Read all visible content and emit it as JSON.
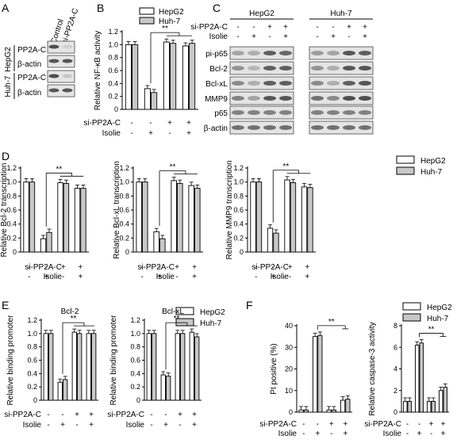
{
  "panel_letters": [
    "A",
    "B",
    "C",
    "D",
    "E",
    "F"
  ],
  "colors": {
    "hepg2": "#ffffff",
    "huh7": "#c8c8c8",
    "axis": "#000000"
  },
  "row_labels": {
    "si": "si-PP2A-C",
    "isolie": "Isolie"
  },
  "legend": {
    "hepg2": "HepG2",
    "huh7": "Huh-7"
  },
  "significance": "**",
  "blot_a": {
    "columns": [
      "Control",
      "si-PP2A-C"
    ],
    "groups": [
      "HepG2",
      "Huh-7"
    ],
    "rows": [
      "PP2A-C",
      "β-actin",
      "PP2A-C",
      "β-actin"
    ]
  },
  "blot_c": {
    "groups": [
      "HepG2",
      "Huh-7"
    ],
    "si_marks": [
      "-",
      "-",
      "+",
      "+",
      "-",
      "-",
      "+",
      "+"
    ],
    "isolie_marks": [
      "-",
      "+",
      "-",
      "+",
      "-",
      "+",
      "-",
      "+"
    ],
    "rows": [
      "pi-p65",
      "Bcl-2",
      "Bcl-xL",
      "MMP9",
      "p65",
      "β-actin"
    ]
  },
  "chart_data": [
    {
      "id": "B",
      "type": "bar",
      "title": "",
      "ylabel": "Relative NF-κB activity",
      "ylim": [
        0,
        1.2
      ],
      "yticks": [
        "0",
        "0.2",
        "0.4",
        "0.6",
        "0.8",
        "1.0",
        "1.2"
      ],
      "si": [
        "-",
        "-",
        "+",
        "+"
      ],
      "isolie": [
        "-",
        "+",
        "-",
        "+"
      ],
      "series": [
        {
          "name": "HepG2",
          "values": [
            1.0,
            0.32,
            1.04,
            0.98
          ]
        },
        {
          "name": "Huh-7",
          "values": [
            1.0,
            0.26,
            1.02,
            1.02
          ]
        }
      ]
    },
    {
      "id": "D1",
      "type": "bar",
      "title": "",
      "ylabel": "Relative Bcl-2 transcription",
      "ylim": [
        0,
        1.2
      ],
      "yticks": [
        "0",
        "0.2",
        "0.4",
        "0.6",
        "0.8",
        "1.0",
        "1.2"
      ],
      "si": [
        "-",
        "-",
        "+",
        "+"
      ],
      "isolie": [
        "-",
        "+",
        "-",
        "+"
      ],
      "series": [
        {
          "name": "HepG2",
          "values": [
            1.0,
            0.19,
            0.99,
            0.91
          ]
        },
        {
          "name": "Huh-7",
          "values": [
            1.0,
            0.28,
            0.98,
            0.91
          ]
        }
      ]
    },
    {
      "id": "D2",
      "type": "bar",
      "title": "",
      "ylabel": "Relative Bcl-xL transcription",
      "ylim": [
        0,
        1.2
      ],
      "yticks": [
        "0",
        "0.2",
        "0.4",
        "0.6",
        "0.8",
        "1.0",
        "1.2"
      ],
      "si": [
        "-",
        "-",
        "+",
        "+"
      ],
      "isolie": [
        "-",
        "+",
        "-",
        "+"
      ],
      "series": [
        {
          "name": "HepG2",
          "values": [
            1.0,
            0.29,
            1.02,
            0.95
          ]
        },
        {
          "name": "Huh-7",
          "values": [
            1.0,
            0.19,
            0.98,
            0.91
          ]
        }
      ]
    },
    {
      "id": "D3",
      "type": "bar",
      "title": "",
      "ylabel": "Relative MMP9 transcription",
      "ylim": [
        0,
        1.2
      ],
      "yticks": [
        "0",
        "0.2",
        "0.4",
        "0.6",
        "0.8",
        "1.0",
        "1.2"
      ],
      "si": [
        "-",
        "-",
        "+",
        "+"
      ],
      "isolie": [
        "-",
        "+",
        "-",
        "+"
      ],
      "series": [
        {
          "name": "HepG2",
          "values": [
            1.0,
            0.34,
            1.03,
            0.93
          ]
        },
        {
          "name": "Huh-7",
          "values": [
            1.0,
            0.27,
            0.99,
            0.92
          ]
        }
      ]
    },
    {
      "id": "E1",
      "type": "bar",
      "title": "Bcl-2",
      "ylabel": "Relative binding promoter",
      "ylim": [
        0,
        1.2
      ],
      "yticks": [
        "0",
        "0.2",
        "0.4",
        "0.6",
        "0.8",
        "1.0",
        "1.2"
      ],
      "si": [
        "-",
        "-",
        "+",
        "+"
      ],
      "isolie": [
        "-",
        "+",
        "-",
        "+"
      ],
      "series": [
        {
          "name": "HepG2",
          "values": [
            1.0,
            0.27,
            1.02,
            1.0
          ]
        },
        {
          "name": "Huh-7",
          "values": [
            1.0,
            0.31,
            1.0,
            1.0
          ]
        }
      ]
    },
    {
      "id": "E2",
      "type": "bar",
      "title": "Bcl-xL",
      "ylabel": "Relative binding promoter",
      "ylim": [
        0,
        1.2
      ],
      "yticks": [
        "0",
        "0.2",
        "0.4",
        "0.6",
        "0.8",
        "1.0",
        "1.2"
      ],
      "si": [
        "-",
        "-",
        "+",
        "+"
      ],
      "isolie": [
        "-",
        "+",
        "-",
        "+"
      ],
      "series": [
        {
          "name": "HepG2",
          "values": [
            1.0,
            0.38,
            1.0,
            1.02
          ]
        },
        {
          "name": "Huh-7",
          "values": [
            1.0,
            0.36,
            1.0,
            0.95
          ]
        }
      ]
    },
    {
      "id": "F1",
      "type": "bar",
      "title": "",
      "ylabel": "PI positive (%)",
      "ylim": [
        0,
        40
      ],
      "yticks": [
        "0",
        "10",
        "20",
        "30",
        "40"
      ],
      "si": [
        "-",
        "-",
        "+",
        "+"
      ],
      "isolie": [
        "-",
        "+",
        "-",
        "+"
      ],
      "series": [
        {
          "name": "HepG2",
          "values": [
            1.0,
            35.0,
            1.0,
            5.5
          ]
        },
        {
          "name": "Huh-7",
          "values": [
            1.0,
            35.5,
            1.0,
            6.0
          ]
        }
      ]
    },
    {
      "id": "F2",
      "type": "bar",
      "title": "",
      "ylabel": "Relative caspase-3 activity",
      "ylim": [
        0,
        8
      ],
      "yticks": [
        "0",
        "2",
        "4",
        "6",
        "8"
      ],
      "si": [
        "-",
        "-",
        "+",
        "+"
      ],
      "isolie": [
        "-",
        "+",
        "-",
        "+"
      ],
      "series": [
        {
          "name": "HepG2",
          "values": [
            1.0,
            6.2,
            1.0,
            2.0
          ]
        },
        {
          "name": "Huh-7",
          "values": [
            1.0,
            6.4,
            1.0,
            2.3
          ]
        }
      ]
    }
  ]
}
